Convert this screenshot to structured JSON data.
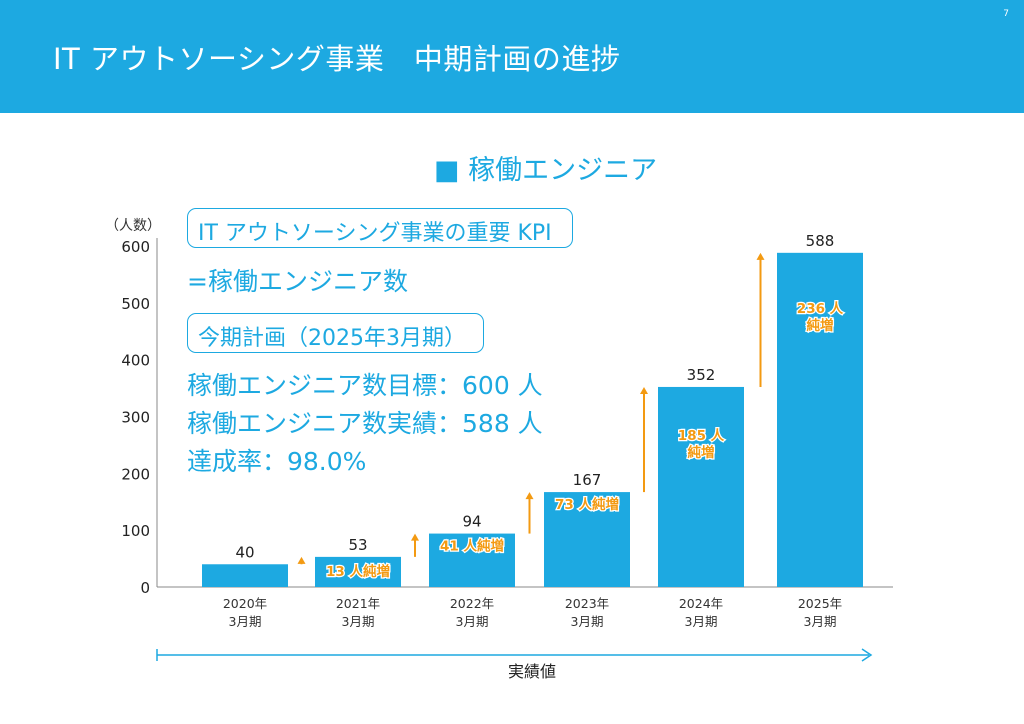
{
  "header": {
    "title": "IT アウトソーシング事業　中期計画の進捗",
    "page_number": "7"
  },
  "section_title": "■ 稼働エンジニア",
  "kpi": {
    "box1": "IT アウトソーシング事業の重要 KPI",
    "line1": "=稼働エンジニア数",
    "box2": "今期計画（2025年3月期）",
    "line2": "稼働エンジニア数目標：600 人",
    "line3": "稼働エンジニア数実績：588 人",
    "line4": "達成率：98.0%"
  },
  "colors": {
    "brand": "#1da9e1",
    "bar": "#1da9e1",
    "increase": "#f39a12",
    "axis": "#888888"
  },
  "chart_data": {
    "type": "bar",
    "ylabel": "（人数）",
    "xlabel": "実績値",
    "ylim": [
      0,
      600
    ],
    "yticks": [
      0,
      100,
      200,
      300,
      400,
      500,
      600
    ],
    "categories": [
      [
        "2020年",
        "3月期"
      ],
      [
        "2021年",
        "3月期"
      ],
      [
        "2022年",
        "3月期"
      ],
      [
        "2023年",
        "3月期"
      ],
      [
        "2024年",
        "3月期"
      ],
      [
        "2025年",
        "3月期"
      ]
    ],
    "values": [
      40,
      53,
      94,
      167,
      352,
      588
    ],
    "increments": [
      null,
      13,
      41,
      73,
      185,
      236
    ],
    "increment_labels": [
      null,
      "13 人純増",
      "41 人純増",
      "73 人純増",
      [
        "185 人",
        "純増"
      ],
      [
        "236 人",
        "純増"
      ]
    ],
    "grid": false
  }
}
